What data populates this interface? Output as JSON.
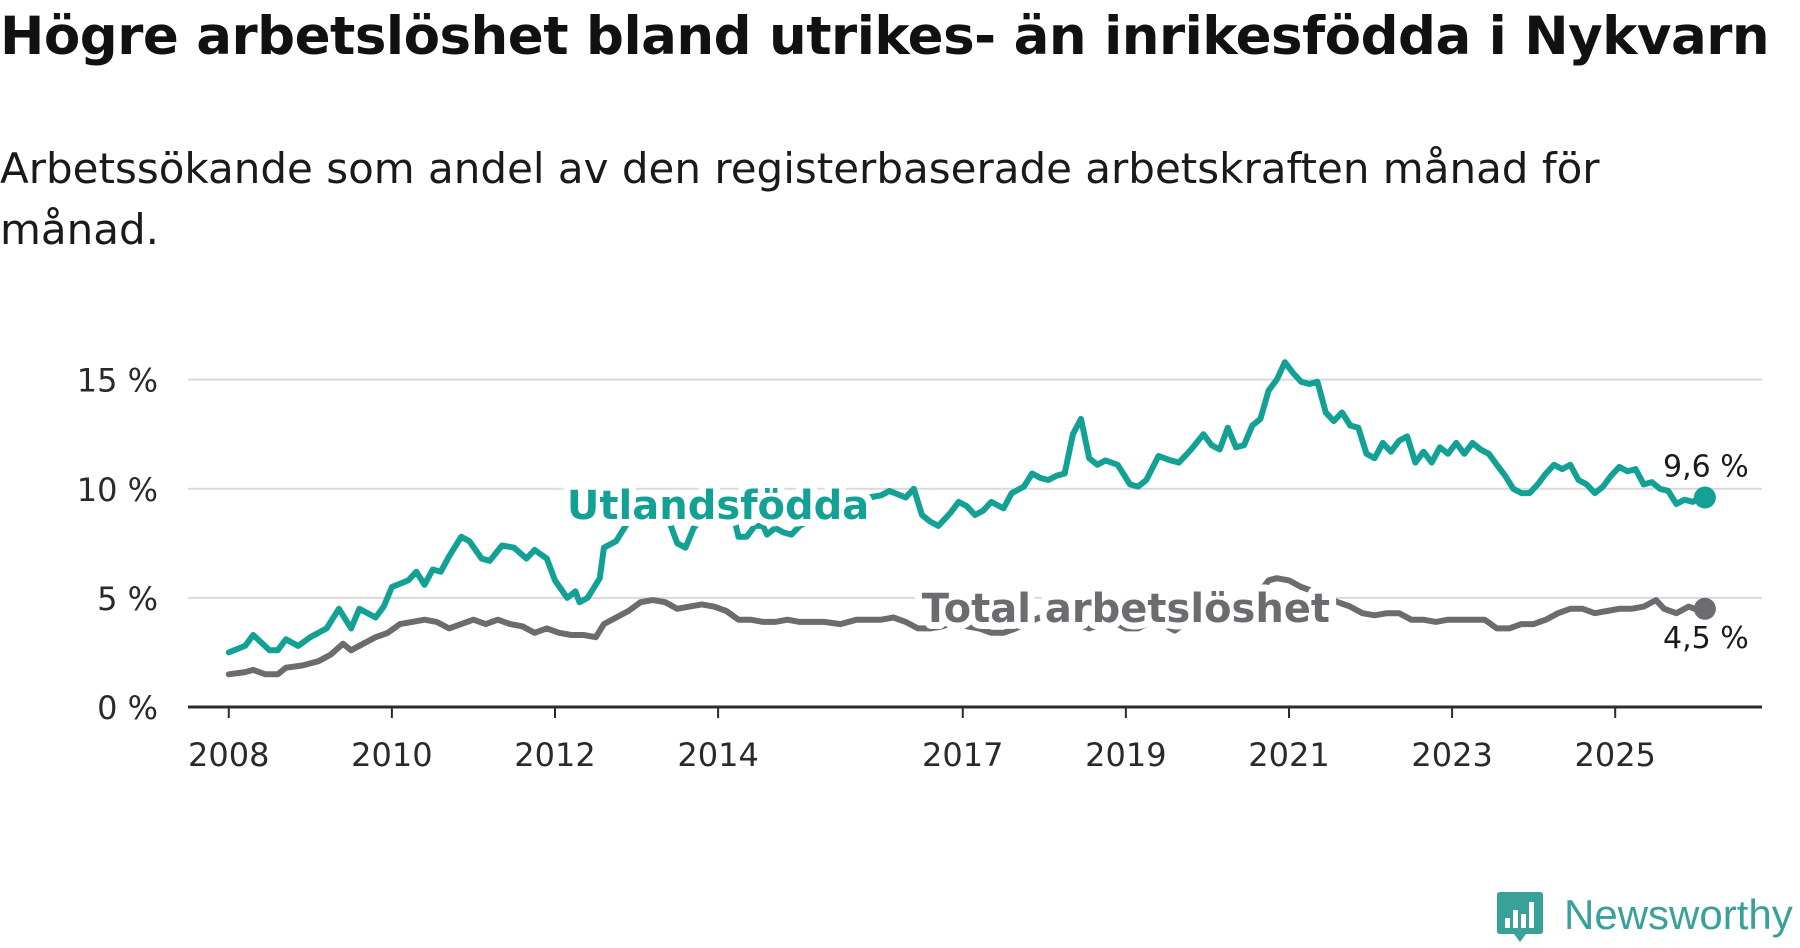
{
  "title": "Högre arbetslöshet bland utrikes- än inrikesfödda i Nykvarn",
  "subtitle": "Arbetssökande som andel av den registerbaserade arbetskraften månad för månad.",
  "brand": {
    "name": "Newsworthy",
    "color": "#3aa19a",
    "icon": "bar-chart-logo-icon"
  },
  "chart_data": {
    "type": "line",
    "title": "Högre arbetslöshet bland utrikes- än inrikesfödda i Nykvarn",
    "xlabel": "",
    "ylabel": "",
    "x_range": [
      2007.5,
      2026.8
    ],
    "ylim": [
      0,
      17
    ],
    "y_ticks": [
      0,
      5,
      10,
      15
    ],
    "y_tick_labels": [
      "0 %",
      "5 %",
      "10 %",
      "15 %"
    ],
    "x_ticks": [
      2008,
      2010,
      2012,
      2014,
      2017,
      2019,
      2021,
      2023,
      2025
    ],
    "x_tick_labels": [
      "2008",
      "2010",
      "2012",
      "2014",
      "2017",
      "2019",
      "2021",
      "2023",
      "2025"
    ],
    "grid": true,
    "series": [
      {
        "name": "Utlandsfödda",
        "color": "#13a196",
        "end_label": "9,6 %",
        "points": [
          [
            2008.0,
            2.5
          ],
          [
            2008.2,
            2.8
          ],
          [
            2008.3,
            3.3
          ],
          [
            2008.5,
            2.6
          ],
          [
            2008.6,
            2.6
          ],
          [
            2008.7,
            3.1
          ],
          [
            2008.85,
            2.8
          ],
          [
            2009.0,
            3.2
          ],
          [
            2009.2,
            3.6
          ],
          [
            2009.35,
            4.5
          ],
          [
            2009.5,
            3.6
          ],
          [
            2009.6,
            4.5
          ],
          [
            2009.8,
            4.1
          ],
          [
            2009.9,
            4.6
          ],
          [
            2010.0,
            5.5
          ],
          [
            2010.2,
            5.8
          ],
          [
            2010.3,
            6.2
          ],
          [
            2010.4,
            5.6
          ],
          [
            2010.5,
            6.3
          ],
          [
            2010.6,
            6.2
          ],
          [
            2010.7,
            6.9
          ],
          [
            2010.85,
            7.8
          ],
          [
            2010.95,
            7.6
          ],
          [
            2011.1,
            6.8
          ],
          [
            2011.2,
            6.7
          ],
          [
            2011.35,
            7.4
          ],
          [
            2011.5,
            7.3
          ],
          [
            2011.65,
            6.8
          ],
          [
            2011.75,
            7.2
          ],
          [
            2011.9,
            6.8
          ],
          [
            2012.0,
            5.8
          ],
          [
            2012.15,
            5.0
          ],
          [
            2012.25,
            5.3
          ],
          [
            2012.3,
            4.8
          ],
          [
            2012.4,
            5.0
          ],
          [
            2012.55,
            5.9
          ],
          [
            2012.6,
            7.3
          ],
          [
            2012.75,
            7.6
          ],
          [
            2012.9,
            8.5
          ],
          [
            2013.0,
            9.3
          ],
          [
            2013.1,
            9.8
          ],
          [
            2013.3,
            9.6
          ],
          [
            2013.4,
            8.5
          ],
          [
            2013.5,
            7.5
          ],
          [
            2013.6,
            7.3
          ],
          [
            2013.7,
            8.2
          ],
          [
            2013.85,
            8.8
          ],
          [
            2014.0,
            9.2
          ],
          [
            2014.1,
            8.9
          ],
          [
            2014.2,
            8.6
          ],
          [
            2014.25,
            7.8
          ],
          [
            2014.35,
            7.8
          ],
          [
            2014.45,
            8.3
          ],
          [
            2014.55,
            8.3
          ],
          [
            2014.6,
            7.9
          ],
          [
            2014.7,
            8.2
          ],
          [
            2014.8,
            8.0
          ],
          [
            2014.9,
            7.9
          ],
          [
            2015.0,
            8.3
          ],
          [
            2015.1,
            8.5
          ],
          [
            2015.25,
            8.6
          ],
          [
            2015.4,
            9.0
          ],
          [
            2015.55,
            9.2
          ],
          [
            2015.7,
            9.4
          ],
          [
            2015.85,
            9.6
          ],
          [
            2016.0,
            9.7
          ],
          [
            2016.1,
            9.9
          ],
          [
            2016.3,
            9.6
          ],
          [
            2016.4,
            10.0
          ],
          [
            2016.5,
            8.8
          ],
          [
            2016.6,
            8.5
          ],
          [
            2016.7,
            8.3
          ],
          [
            2016.85,
            8.9
          ],
          [
            2016.95,
            9.4
          ],
          [
            2017.05,
            9.2
          ],
          [
            2017.15,
            8.8
          ],
          [
            2017.25,
            9.0
          ],
          [
            2017.35,
            9.4
          ],
          [
            2017.5,
            9.1
          ],
          [
            2017.6,
            9.8
          ],
          [
            2017.75,
            10.1
          ],
          [
            2017.85,
            10.7
          ],
          [
            2017.95,
            10.5
          ],
          [
            2018.05,
            10.4
          ],
          [
            2018.15,
            10.6
          ],
          [
            2018.25,
            10.7
          ],
          [
            2018.35,
            12.5
          ],
          [
            2018.45,
            13.2
          ],
          [
            2018.55,
            11.4
          ],
          [
            2018.65,
            11.1
          ],
          [
            2018.75,
            11.3
          ],
          [
            2018.9,
            11.1
          ],
          [
            2019.05,
            10.2
          ],
          [
            2019.15,
            10.1
          ],
          [
            2019.25,
            10.4
          ],
          [
            2019.4,
            11.5
          ],
          [
            2019.55,
            11.3
          ],
          [
            2019.65,
            11.2
          ],
          [
            2019.8,
            11.8
          ],
          [
            2019.95,
            12.5
          ],
          [
            2020.05,
            12.0
          ],
          [
            2020.15,
            11.8
          ],
          [
            2020.25,
            12.8
          ],
          [
            2020.35,
            11.9
          ],
          [
            2020.45,
            12.0
          ],
          [
            2020.55,
            12.9
          ],
          [
            2020.65,
            13.2
          ],
          [
            2020.75,
            14.5
          ],
          [
            2020.85,
            15.0
          ],
          [
            2020.95,
            15.8
          ],
          [
            2021.05,
            15.3
          ],
          [
            2021.15,
            14.9
          ],
          [
            2021.25,
            14.8
          ],
          [
            2021.35,
            14.9
          ],
          [
            2021.45,
            13.5
          ],
          [
            2021.55,
            13.1
          ],
          [
            2021.65,
            13.5
          ],
          [
            2021.75,
            12.9
          ],
          [
            2021.85,
            12.8
          ],
          [
            2021.95,
            11.6
          ],
          [
            2022.05,
            11.4
          ],
          [
            2022.15,
            12.1
          ],
          [
            2022.25,
            11.7
          ],
          [
            2022.35,
            12.2
          ],
          [
            2022.45,
            12.4
          ],
          [
            2022.55,
            11.2
          ],
          [
            2022.65,
            11.7
          ],
          [
            2022.75,
            11.2
          ],
          [
            2022.85,
            11.9
          ],
          [
            2022.95,
            11.6
          ],
          [
            2023.05,
            12.1
          ],
          [
            2023.15,
            11.6
          ],
          [
            2023.25,
            12.1
          ],
          [
            2023.35,
            11.8
          ],
          [
            2023.45,
            11.6
          ],
          [
            2023.55,
            11.1
          ],
          [
            2023.65,
            10.6
          ],
          [
            2023.75,
            10.0
          ],
          [
            2023.85,
            9.8
          ],
          [
            2023.95,
            9.8
          ],
          [
            2024.05,
            10.2
          ],
          [
            2024.15,
            10.7
          ],
          [
            2024.25,
            11.1
          ],
          [
            2024.35,
            10.9
          ],
          [
            2024.45,
            11.1
          ],
          [
            2024.55,
            10.4
          ],
          [
            2024.65,
            10.2
          ],
          [
            2024.75,
            9.8
          ],
          [
            2024.85,
            10.1
          ],
          [
            2024.95,
            10.6
          ],
          [
            2025.05,
            11.0
          ],
          [
            2025.15,
            10.8
          ],
          [
            2025.25,
            10.9
          ],
          [
            2025.35,
            10.2
          ],
          [
            2025.45,
            10.3
          ],
          [
            2025.55,
            10.0
          ],
          [
            2025.65,
            9.9
          ],
          [
            2025.75,
            9.3
          ],
          [
            2025.85,
            9.5
          ],
          [
            2025.95,
            9.4
          ],
          [
            2026.05,
            9.6
          ],
          [
            2026.1,
            9.6
          ]
        ]
      },
      {
        "name": "Total arbetslöshet",
        "color": "#6c6b70",
        "end_label": "4,5 %",
        "points": [
          [
            2008.0,
            1.5
          ],
          [
            2008.2,
            1.6
          ],
          [
            2008.3,
            1.7
          ],
          [
            2008.45,
            1.5
          ],
          [
            2008.6,
            1.5
          ],
          [
            2008.7,
            1.8
          ],
          [
            2008.9,
            1.9
          ],
          [
            2009.1,
            2.1
          ],
          [
            2009.25,
            2.4
          ],
          [
            2009.4,
            2.9
          ],
          [
            2009.5,
            2.6
          ],
          [
            2009.65,
            2.9
          ],
          [
            2009.8,
            3.2
          ],
          [
            2009.95,
            3.4
          ],
          [
            2010.1,
            3.8
          ],
          [
            2010.25,
            3.9
          ],
          [
            2010.4,
            4.0
          ],
          [
            2010.55,
            3.9
          ],
          [
            2010.7,
            3.6
          ],
          [
            2010.85,
            3.8
          ],
          [
            2011.0,
            4.0
          ],
          [
            2011.15,
            3.8
          ],
          [
            2011.3,
            4.0
          ],
          [
            2011.45,
            3.8
          ],
          [
            2011.6,
            3.7
          ],
          [
            2011.75,
            3.4
          ],
          [
            2011.9,
            3.6
          ],
          [
            2012.05,
            3.4
          ],
          [
            2012.2,
            3.3
          ],
          [
            2012.35,
            3.3
          ],
          [
            2012.5,
            3.2
          ],
          [
            2012.6,
            3.8
          ],
          [
            2012.75,
            4.1
          ],
          [
            2012.9,
            4.4
          ],
          [
            2013.05,
            4.8
          ],
          [
            2013.2,
            4.9
          ],
          [
            2013.35,
            4.8
          ],
          [
            2013.5,
            4.5
          ],
          [
            2013.65,
            4.6
          ],
          [
            2013.8,
            4.7
          ],
          [
            2013.95,
            4.6
          ],
          [
            2014.1,
            4.4
          ],
          [
            2014.25,
            4.0
          ],
          [
            2014.4,
            4.0
          ],
          [
            2014.55,
            3.9
          ],
          [
            2014.7,
            3.9
          ],
          [
            2014.85,
            4.0
          ],
          [
            2015.0,
            3.9
          ],
          [
            2015.15,
            3.9
          ],
          [
            2015.3,
            3.9
          ],
          [
            2015.5,
            3.8
          ],
          [
            2015.7,
            4.0
          ],
          [
            2015.85,
            4.0
          ],
          [
            2016.0,
            4.0
          ],
          [
            2016.15,
            4.1
          ],
          [
            2016.3,
            3.9
          ],
          [
            2016.45,
            3.6
          ],
          [
            2016.6,
            3.6
          ],
          [
            2016.75,
            3.7
          ],
          [
            2016.9,
            3.9
          ],
          [
            2017.05,
            3.7
          ],
          [
            2017.2,
            3.6
          ],
          [
            2017.35,
            3.4
          ],
          [
            2017.5,
            3.4
          ],
          [
            2017.65,
            3.6
          ],
          [
            2017.8,
            3.9
          ],
          [
            2017.95,
            4.1
          ],
          [
            2018.1,
            4.1
          ],
          [
            2018.25,
            4.2
          ],
          [
            2018.4,
            3.8
          ],
          [
            2018.55,
            3.6
          ],
          [
            2018.7,
            3.8
          ],
          [
            2018.85,
            3.9
          ],
          [
            2019.0,
            3.6
          ],
          [
            2019.15,
            3.6
          ],
          [
            2019.3,
            3.9
          ],
          [
            2019.45,
            3.8
          ],
          [
            2019.6,
            3.5
          ],
          [
            2019.75,
            3.9
          ],
          [
            2019.9,
            4.1
          ],
          [
            2020.05,
            4.1
          ],
          [
            2020.2,
            4.0
          ],
          [
            2020.35,
            4.2
          ],
          [
            2020.5,
            4.6
          ],
          [
            2020.65,
            5.3
          ],
          [
            2020.75,
            5.8
          ],
          [
            2020.85,
            5.9
          ],
          [
            2021.0,
            5.8
          ],
          [
            2021.15,
            5.5
          ],
          [
            2021.3,
            5.3
          ],
          [
            2021.45,
            5.0
          ],
          [
            2021.6,
            4.8
          ],
          [
            2021.75,
            4.6
          ],
          [
            2021.9,
            4.3
          ],
          [
            2022.05,
            4.2
          ],
          [
            2022.2,
            4.3
          ],
          [
            2022.35,
            4.3
          ],
          [
            2022.5,
            4.0
          ],
          [
            2022.65,
            4.0
          ],
          [
            2022.8,
            3.9
          ],
          [
            2022.95,
            4.0
          ],
          [
            2023.1,
            4.0
          ],
          [
            2023.25,
            4.0
          ],
          [
            2023.4,
            4.0
          ],
          [
            2023.55,
            3.6
          ],
          [
            2023.7,
            3.6
          ],
          [
            2023.85,
            3.8
          ],
          [
            2024.0,
            3.8
          ],
          [
            2024.15,
            4.0
          ],
          [
            2024.3,
            4.3
          ],
          [
            2024.45,
            4.5
          ],
          [
            2024.6,
            4.5
          ],
          [
            2024.75,
            4.3
          ],
          [
            2024.9,
            4.4
          ],
          [
            2025.05,
            4.5
          ],
          [
            2025.2,
            4.5
          ],
          [
            2025.35,
            4.6
          ],
          [
            2025.5,
            4.9
          ],
          [
            2025.6,
            4.5
          ],
          [
            2025.75,
            4.3
          ],
          [
            2025.9,
            4.6
          ],
          [
            2026.05,
            4.4
          ],
          [
            2026.1,
            4.5
          ]
        ]
      }
    ],
    "annotations": [
      {
        "text": "Utlandsfödda",
        "x": 2014.0,
        "y": 9.2,
        "color": "#13a196",
        "series": "Utlandsfödda"
      },
      {
        "text": "Total arbetslöshet",
        "x": 2019.0,
        "y": 4.5,
        "color": "#6c6b70",
        "series": "Total arbetslöshet"
      }
    ]
  }
}
